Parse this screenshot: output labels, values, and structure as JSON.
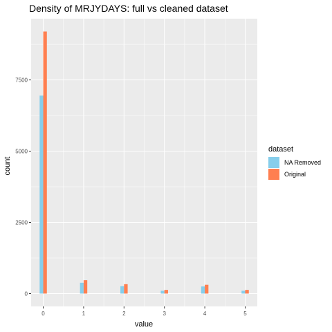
{
  "chart_data": {
    "type": "bar",
    "title": "Density of MRJYDAYS: full vs cleaned dataset",
    "xlabel": "value",
    "ylabel": "count",
    "categories": [
      "0",
      "1",
      "2",
      "3",
      "4",
      "5"
    ],
    "x": [
      0,
      1,
      2,
      3,
      4,
      5
    ],
    "series": [
      {
        "name": "NA Removed",
        "color": "#87CEEB",
        "values": [
          6950,
          380,
          260,
          100,
          250,
          100
        ]
      },
      {
        "name": "Original",
        "color": "#FF7F50",
        "values": [
          9200,
          470,
          330,
          130,
          310,
          130
        ]
      }
    ],
    "xlim": [
      -0.3,
      5.3
    ],
    "ylim": [
      -450,
      9650
    ],
    "yticks": [
      0,
      2500,
      5000,
      7500
    ],
    "ytick_labels": [
      "0",
      "2500",
      "5000",
      "7500"
    ],
    "xtick_labels": [
      "0",
      "1",
      "2",
      "3",
      "4",
      "5"
    ],
    "grid": true,
    "legend": {
      "title": "dataset",
      "placement": "right"
    },
    "panel_color": "#EBEBEB",
    "grid_color": "#FFFFFF"
  }
}
